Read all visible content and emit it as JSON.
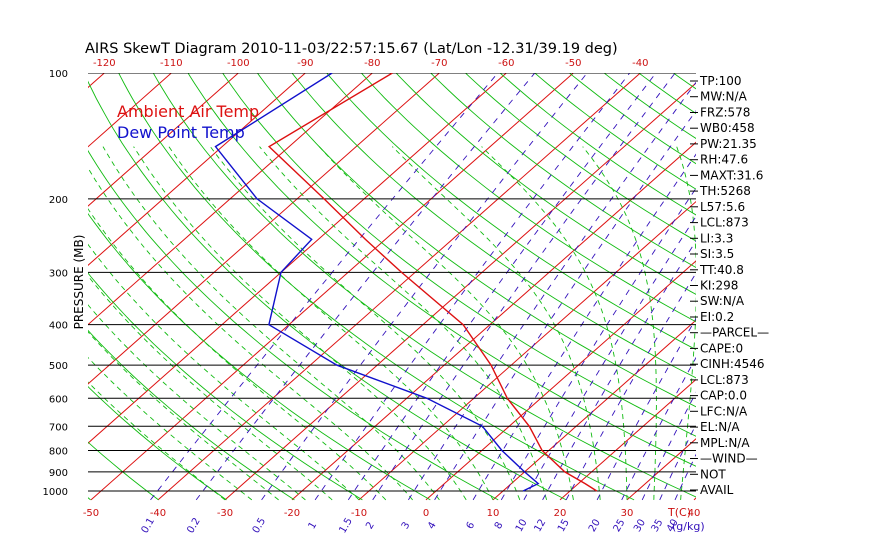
{
  "chart_data": {
    "type": "line",
    "title": "AIRS SkewT Diagram 2010-11-03/22:57:15.67 (Lat/Lon -12.31/39.19 deg)",
    "ylabel": "PRESSURE (MB)",
    "xlabel": "T(C)",
    "mixing_ratio_label": "(g/kg)",
    "y_scale": "log",
    "ylim": [
      1050,
      100
    ],
    "bottom_ticks": [
      "-50",
      "-40",
      "-30",
      "-20",
      "-10",
      "0",
      "10",
      "20",
      "30",
      "40"
    ],
    "top_ticks": [
      "-120",
      "-110",
      "-100",
      "-90",
      "-80",
      "-70",
      "-60",
      "-50",
      "-40"
    ],
    "pressure_ticks": [
      {
        "p": 100,
        "label": "100"
      },
      {
        "p": 200,
        "label": "200"
      },
      {
        "p": 300,
        "label": "300"
      },
      {
        "p": 400,
        "label": "400"
      },
      {
        "p": 500,
        "label": "500"
      },
      {
        "p": 600,
        "label": "600"
      },
      {
        "p": 700,
        "label": "700"
      },
      {
        "p": 800,
        "label": "800"
      },
      {
        "p": 900,
        "label": "900"
      },
      {
        "p": 1000,
        "label": "1000"
      }
    ],
    "mixing_ratio_ticks": [
      "0.1",
      "0.2",
      "0.5",
      "1",
      "1.5",
      "2",
      "3",
      "4",
      "6",
      "8",
      "10",
      "12",
      "15",
      "20",
      "25",
      "30",
      "35",
      "40"
    ],
    "legend": [
      {
        "name": "Ambient Air Temp",
        "color": "#dd1111"
      },
      {
        "name": "Dew Point Temp",
        "color": "#1111cc"
      }
    ],
    "series": [
      {
        "name": "Ambient Air Temp",
        "color": "#dd1111",
        "points": [
          {
            "p": 100,
            "t": -77
          },
          {
            "p": 150,
            "t": -83
          },
          {
            "p": 200,
            "t": -66
          },
          {
            "p": 250,
            "t": -53
          },
          {
            "p": 300,
            "t": -42
          },
          {
            "p": 400,
            "t": -24
          },
          {
            "p": 500,
            "t": -13
          },
          {
            "p": 600,
            "t": -5
          },
          {
            "p": 700,
            "t": 3
          },
          {
            "p": 800,
            "t": 9
          },
          {
            "p": 900,
            "t": 16
          },
          {
            "p": 960,
            "t": 21
          },
          {
            "p": 1000,
            "t": 24
          }
        ]
      },
      {
        "name": "Dew Point Temp",
        "color": "#1111cc",
        "points": [
          {
            "p": 100,
            "t": -86
          },
          {
            "p": 150,
            "t": -91
          },
          {
            "p": 200,
            "t": -76
          },
          {
            "p": 250,
            "t": -61
          },
          {
            "p": 300,
            "t": -60
          },
          {
            "p": 400,
            "t": -53
          },
          {
            "p": 500,
            "t": -36
          },
          {
            "p": 600,
            "t": -17
          },
          {
            "p": 700,
            "t": -4
          },
          {
            "p": 800,
            "t": 3
          },
          {
            "p": 900,
            "t": 10
          },
          {
            "p": 960,
            "t": 14
          },
          {
            "p": 1000,
            "t": 13
          }
        ]
      }
    ],
    "indices": [
      "TP:100",
      "MW:N/A",
      "FRZ:578",
      "WB0:458",
      "PW:21.35",
      "RH:47.6",
      "MAXT:31.6",
      "TH:5268",
      "L57:5.6",
      "LCL:873",
      "LI:3.3",
      "SI:3.5",
      "TT:40.8",
      "KI:298",
      "SW:N/A",
      "EI:0.2",
      "—PARCEL—",
      "CAPE:0",
      "CINH:4546",
      "LCL:873",
      "CAP:0.0",
      "LFC:N/A",
      "EL:N/A",
      "MPL:N/A",
      "—WIND—",
      "NOT",
      "AVAIL"
    ],
    "colors": {
      "isotherm": "#dd1111",
      "dry_adiabat": "#11bb11",
      "moist_adiabat": "#11bb11",
      "mixing_ratio": "#3311bb",
      "isobar": "#000000",
      "tick_label": "#cc1111",
      "text": "#000000"
    }
  }
}
